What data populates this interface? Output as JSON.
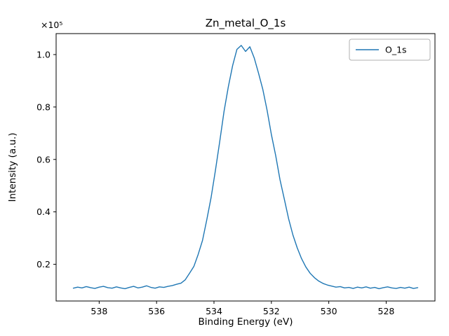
{
  "chart_data": {
    "type": "line",
    "title": "Zn_metal_O_1s",
    "xlabel": "Binding Energy (eV)",
    "ylabel": "Intensity (a.u.)",
    "y_offset_label": "×10⁵",
    "y_unit_multiplier": 100000,
    "x_axis_reversed": true,
    "grid": false,
    "xlim": [
      539.5,
      526.3
    ],
    "ylim": [
      0.06,
      1.08
    ],
    "xticks": [
      538,
      536,
      534,
      532,
      530,
      528
    ],
    "xtick_labels": [
      "538",
      "536",
      "534",
      "532",
      "530",
      "528"
    ],
    "yticks": [
      0.2,
      0.4,
      0.6,
      0.8,
      1.0
    ],
    "ytick_labels": [
      "0.2",
      "0.4",
      "0.6",
      "0.8",
      "1.0"
    ],
    "legend": {
      "position": "upper right",
      "entries": [
        "O_1s"
      ]
    },
    "series": [
      {
        "name": "O_1s",
        "color": "#1f77b4",
        "x_start": 538.9,
        "x_step": -0.15,
        "peak_center_ev": 533.05,
        "peak_height": 1.035,
        "baseline": 0.112,
        "y": [
          0.109,
          0.113,
          0.11,
          0.115,
          0.111,
          0.108,
          0.113,
          0.116,
          0.111,
          0.109,
          0.114,
          0.11,
          0.107,
          0.112,
          0.116,
          0.11,
          0.113,
          0.118,
          0.112,
          0.109,
          0.114,
          0.112,
          0.116,
          0.119,
          0.124,
          0.128,
          0.141,
          0.166,
          0.192,
          0.238,
          0.291,
          0.37,
          0.455,
          0.558,
          0.668,
          0.783,
          0.877,
          0.958,
          1.02,
          1.035,
          1.012,
          1.03,
          0.988,
          0.93,
          0.868,
          0.788,
          0.695,
          0.615,
          0.523,
          0.449,
          0.374,
          0.312,
          0.263,
          0.222,
          0.19,
          0.166,
          0.149,
          0.136,
          0.127,
          0.121,
          0.117,
          0.113,
          0.115,
          0.11,
          0.112,
          0.108,
          0.113,
          0.11,
          0.114,
          0.109,
          0.112,
          0.107,
          0.111,
          0.114,
          0.11,
          0.108,
          0.112,
          0.109,
          0.113,
          0.108,
          0.111
        ]
      }
    ]
  }
}
